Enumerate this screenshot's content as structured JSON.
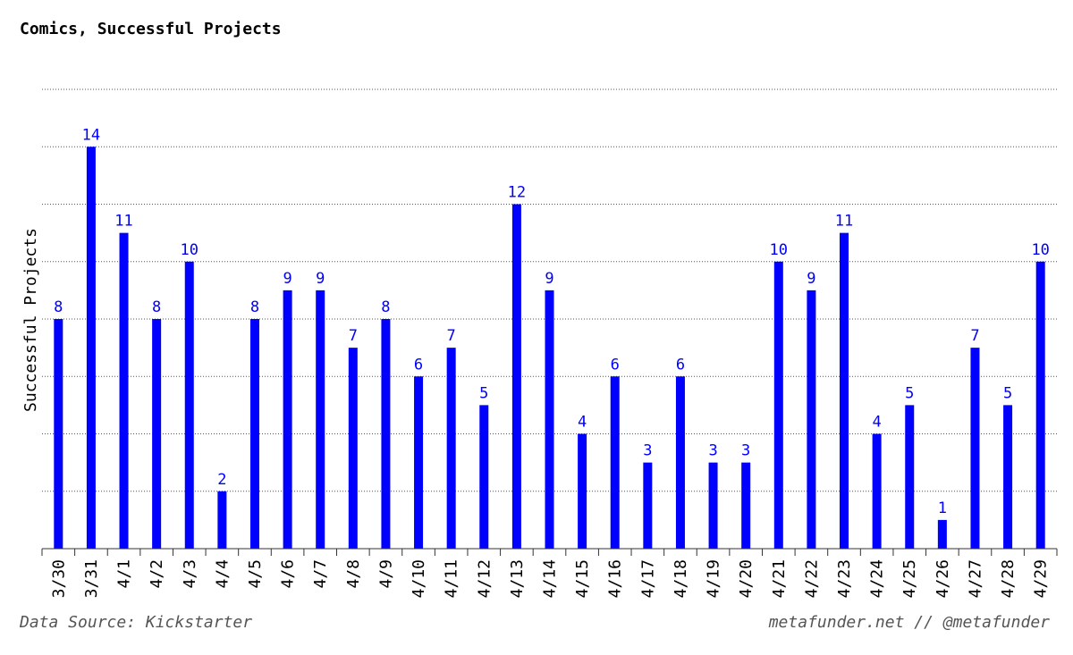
{
  "chart_data": {
    "type": "bar",
    "title": "Comics, Successful Projects",
    "ylabel": "Successful Projects",
    "xlabel": "",
    "categories": [
      "3/30",
      "3/31",
      "4/1",
      "4/2",
      "4/3",
      "4/4",
      "4/5",
      "4/6",
      "4/7",
      "4/8",
      "4/9",
      "4/10",
      "4/11",
      "4/12",
      "4/13",
      "4/14",
      "4/15",
      "4/16",
      "4/17",
      "4/18",
      "4/19",
      "4/20",
      "4/21",
      "4/22",
      "4/23",
      "4/24",
      "4/25",
      "4/26",
      "4/27",
      "4/28",
      "4/29"
    ],
    "values": [
      8,
      14,
      11,
      8,
      10,
      2,
      8,
      9,
      9,
      7,
      8,
      6,
      7,
      5,
      12,
      9,
      4,
      6,
      3,
      6,
      3,
      3,
      10,
      9,
      11,
      4,
      5,
      1,
      7,
      5,
      10
    ],
    "ylim": [
      0,
      16
    ],
    "grid": true,
    "bar_color": "#0000ff",
    "label_color": "#0000ff"
  },
  "footer": {
    "source": "Data Source: Kickstarter",
    "credit": "metafunder.net // @metafunder"
  }
}
